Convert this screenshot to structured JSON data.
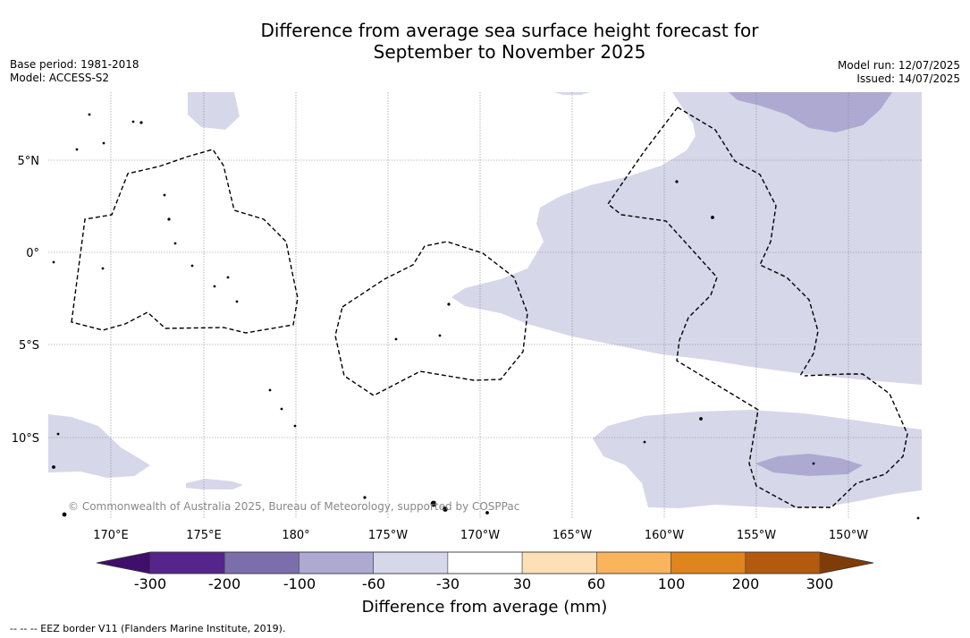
{
  "title": {
    "line1": "Difference from average sea surface height forecast for",
    "line2": "September to November 2025"
  },
  "meta_left": {
    "base_period": "Base period: 1981-2018",
    "model": "Model: ACCESS-S2"
  },
  "meta_right": {
    "model_run": "Model run: 12/07/2025",
    "issued": "Issued: 14/07/2025"
  },
  "map": {
    "lat_labels": [
      "5°N",
      "0°",
      "5°S",
      "10°S"
    ],
    "lon_labels": [
      "170°E",
      "175°E",
      "180°",
      "175°W",
      "170°W",
      "165°W",
      "160°W",
      "155°W",
      "150°W"
    ],
    "copyright": "© Commonwealth of Australia 2025, Bureau of Meteorology, supported by COSPPac",
    "colors": {
      "anomaly_-60_-30": "#d6d7e9",
      "anomaly_-100_-60": "#ada9d1",
      "eez_border": "#000000"
    }
  },
  "colorbar": {
    "tick_labels": [
      "-300",
      "-200",
      "-100",
      "-60",
      "-30",
      "30",
      "60",
      "100",
      "200",
      "300"
    ],
    "colors": [
      "#3f0f6b",
      "#55258b",
      "#7c6dab",
      "#ada9d1",
      "#d6d7e9",
      "#ffffff",
      "#fde0b8",
      "#f9b45c",
      "#e0841e",
      "#b35a0f",
      "#7f3c08"
    ],
    "label": "Difference from average (mm)"
  },
  "footnote": "--  --  -- EEZ border V11 (Flanders Marine Institute, 2019)."
}
